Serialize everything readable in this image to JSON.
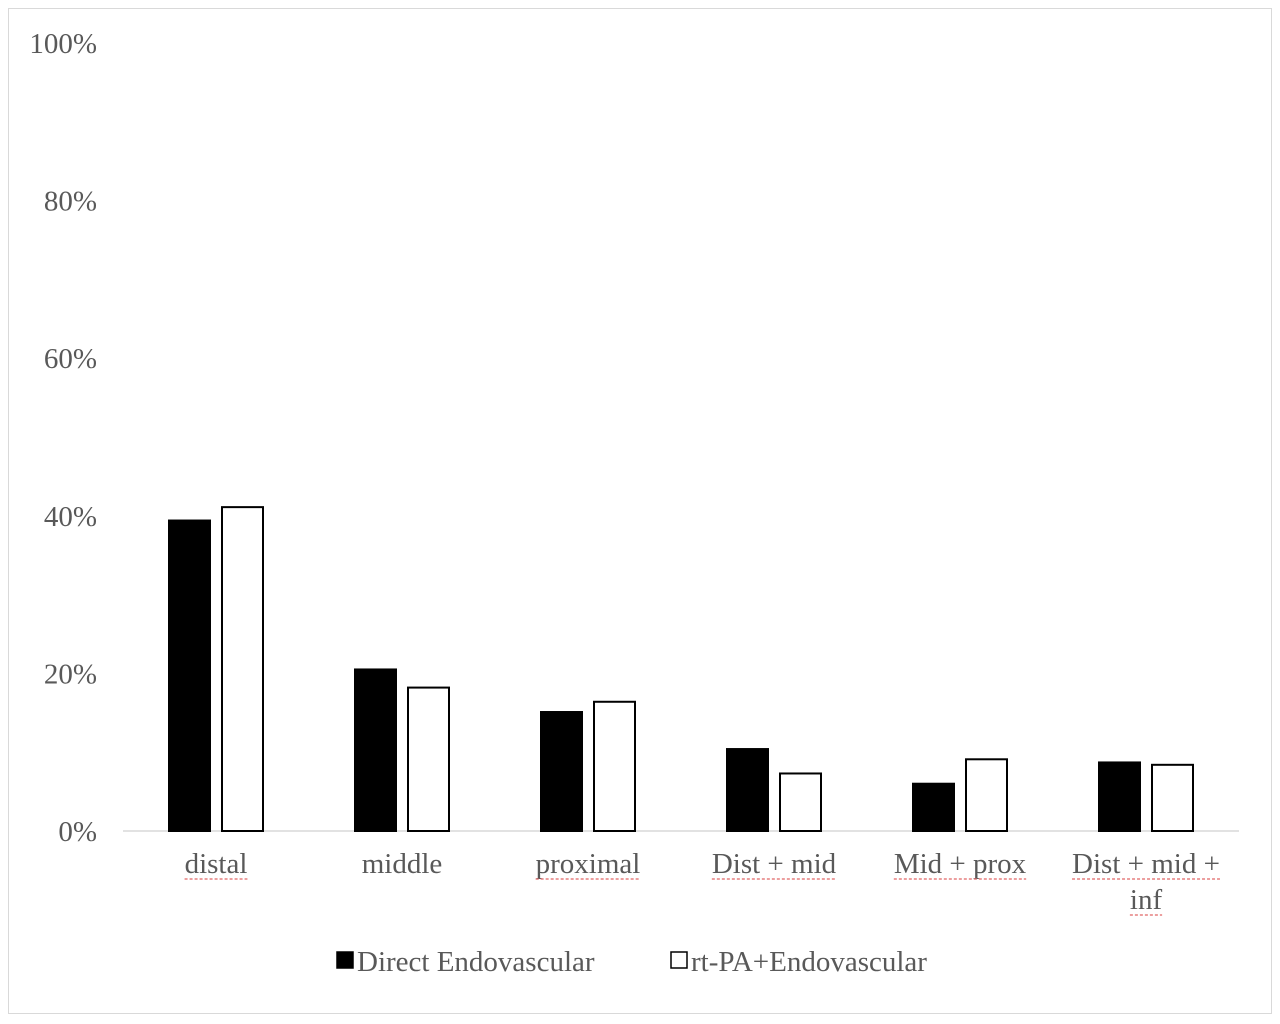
{
  "chart_data": {
    "type": "bar",
    "title": "",
    "xlabel": "",
    "ylabel": "",
    "ylim": [
      0,
      100
    ],
    "yticks": [
      "0%",
      "20%",
      "40%",
      "60%",
      "80%",
      "100%"
    ],
    "grid": false,
    "legend_position": "bottom",
    "categories": [
      [
        "distal"
      ],
      [
        "middle"
      ],
      [
        "proximal"
      ],
      [
        "Dist + mid"
      ],
      [
        "Mid + prox"
      ],
      [
        "Dist + mid +",
        "inf"
      ]
    ],
    "series": [
      {
        "name": "Direct Endovascular",
        "fill": "#000000",
        "stroke": "#000000",
        "values": [
          39.4,
          20.5,
          15.1,
          10.4,
          6.0,
          8.7
        ]
      },
      {
        "name": "rt-PA+Endovascular",
        "fill": "#ffffff",
        "stroke": "#000000",
        "values": [
          41.1,
          18.2,
          16.4,
          7.3,
          9.1,
          8.4
        ]
      }
    ]
  },
  "colors": {
    "axis": "#d9d9d9",
    "text": "#595959",
    "spellcheck_underline": "#e06666"
  }
}
